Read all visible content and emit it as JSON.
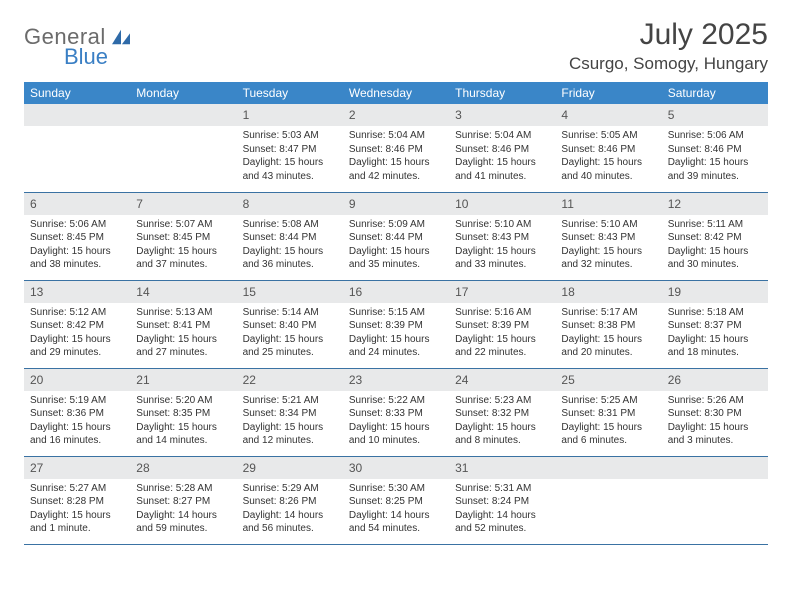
{
  "logo": {
    "text1": "General",
    "text2": "Blue",
    "icon_color": "#2f6aa8"
  },
  "title": "July 2025",
  "location": "Csurgo, Somogy, Hungary",
  "colors": {
    "header_bg": "#3a86c8",
    "header_text": "#ffffff",
    "daynum_bg": "#e8e9ea",
    "row_border": "#3a72a3",
    "body_text": "#333333",
    "logo_gray": "#6b6b6b",
    "logo_blue": "#3a7fc4"
  },
  "weekdays": [
    "Sunday",
    "Monday",
    "Tuesday",
    "Wednesday",
    "Thursday",
    "Friday",
    "Saturday"
  ],
  "weeks": [
    [
      {
        "empty": true
      },
      {
        "empty": true
      },
      {
        "day": "1",
        "sunrise": "Sunrise: 5:03 AM",
        "sunset": "Sunset: 8:47 PM",
        "daylight": "Daylight: 15 hours and 43 minutes."
      },
      {
        "day": "2",
        "sunrise": "Sunrise: 5:04 AM",
        "sunset": "Sunset: 8:46 PM",
        "daylight": "Daylight: 15 hours and 42 minutes."
      },
      {
        "day": "3",
        "sunrise": "Sunrise: 5:04 AM",
        "sunset": "Sunset: 8:46 PM",
        "daylight": "Daylight: 15 hours and 41 minutes."
      },
      {
        "day": "4",
        "sunrise": "Sunrise: 5:05 AM",
        "sunset": "Sunset: 8:46 PM",
        "daylight": "Daylight: 15 hours and 40 minutes."
      },
      {
        "day": "5",
        "sunrise": "Sunrise: 5:06 AM",
        "sunset": "Sunset: 8:46 PM",
        "daylight": "Daylight: 15 hours and 39 minutes."
      }
    ],
    [
      {
        "day": "6",
        "sunrise": "Sunrise: 5:06 AM",
        "sunset": "Sunset: 8:45 PM",
        "daylight": "Daylight: 15 hours and 38 minutes."
      },
      {
        "day": "7",
        "sunrise": "Sunrise: 5:07 AM",
        "sunset": "Sunset: 8:45 PM",
        "daylight": "Daylight: 15 hours and 37 minutes."
      },
      {
        "day": "8",
        "sunrise": "Sunrise: 5:08 AM",
        "sunset": "Sunset: 8:44 PM",
        "daylight": "Daylight: 15 hours and 36 minutes."
      },
      {
        "day": "9",
        "sunrise": "Sunrise: 5:09 AM",
        "sunset": "Sunset: 8:44 PM",
        "daylight": "Daylight: 15 hours and 35 minutes."
      },
      {
        "day": "10",
        "sunrise": "Sunrise: 5:10 AM",
        "sunset": "Sunset: 8:43 PM",
        "daylight": "Daylight: 15 hours and 33 minutes."
      },
      {
        "day": "11",
        "sunrise": "Sunrise: 5:10 AM",
        "sunset": "Sunset: 8:43 PM",
        "daylight": "Daylight: 15 hours and 32 minutes."
      },
      {
        "day": "12",
        "sunrise": "Sunrise: 5:11 AM",
        "sunset": "Sunset: 8:42 PM",
        "daylight": "Daylight: 15 hours and 30 minutes."
      }
    ],
    [
      {
        "day": "13",
        "sunrise": "Sunrise: 5:12 AM",
        "sunset": "Sunset: 8:42 PM",
        "daylight": "Daylight: 15 hours and 29 minutes."
      },
      {
        "day": "14",
        "sunrise": "Sunrise: 5:13 AM",
        "sunset": "Sunset: 8:41 PM",
        "daylight": "Daylight: 15 hours and 27 minutes."
      },
      {
        "day": "15",
        "sunrise": "Sunrise: 5:14 AM",
        "sunset": "Sunset: 8:40 PM",
        "daylight": "Daylight: 15 hours and 25 minutes."
      },
      {
        "day": "16",
        "sunrise": "Sunrise: 5:15 AM",
        "sunset": "Sunset: 8:39 PM",
        "daylight": "Daylight: 15 hours and 24 minutes."
      },
      {
        "day": "17",
        "sunrise": "Sunrise: 5:16 AM",
        "sunset": "Sunset: 8:39 PM",
        "daylight": "Daylight: 15 hours and 22 minutes."
      },
      {
        "day": "18",
        "sunrise": "Sunrise: 5:17 AM",
        "sunset": "Sunset: 8:38 PM",
        "daylight": "Daylight: 15 hours and 20 minutes."
      },
      {
        "day": "19",
        "sunrise": "Sunrise: 5:18 AM",
        "sunset": "Sunset: 8:37 PM",
        "daylight": "Daylight: 15 hours and 18 minutes."
      }
    ],
    [
      {
        "day": "20",
        "sunrise": "Sunrise: 5:19 AM",
        "sunset": "Sunset: 8:36 PM",
        "daylight": "Daylight: 15 hours and 16 minutes."
      },
      {
        "day": "21",
        "sunrise": "Sunrise: 5:20 AM",
        "sunset": "Sunset: 8:35 PM",
        "daylight": "Daylight: 15 hours and 14 minutes."
      },
      {
        "day": "22",
        "sunrise": "Sunrise: 5:21 AM",
        "sunset": "Sunset: 8:34 PM",
        "daylight": "Daylight: 15 hours and 12 minutes."
      },
      {
        "day": "23",
        "sunrise": "Sunrise: 5:22 AM",
        "sunset": "Sunset: 8:33 PM",
        "daylight": "Daylight: 15 hours and 10 minutes."
      },
      {
        "day": "24",
        "sunrise": "Sunrise: 5:23 AM",
        "sunset": "Sunset: 8:32 PM",
        "daylight": "Daylight: 15 hours and 8 minutes."
      },
      {
        "day": "25",
        "sunrise": "Sunrise: 5:25 AM",
        "sunset": "Sunset: 8:31 PM",
        "daylight": "Daylight: 15 hours and 6 minutes."
      },
      {
        "day": "26",
        "sunrise": "Sunrise: 5:26 AM",
        "sunset": "Sunset: 8:30 PM",
        "daylight": "Daylight: 15 hours and 3 minutes."
      }
    ],
    [
      {
        "day": "27",
        "sunrise": "Sunrise: 5:27 AM",
        "sunset": "Sunset: 8:28 PM",
        "daylight": "Daylight: 15 hours and 1 minute."
      },
      {
        "day": "28",
        "sunrise": "Sunrise: 5:28 AM",
        "sunset": "Sunset: 8:27 PM",
        "daylight": "Daylight: 14 hours and 59 minutes."
      },
      {
        "day": "29",
        "sunrise": "Sunrise: 5:29 AM",
        "sunset": "Sunset: 8:26 PM",
        "daylight": "Daylight: 14 hours and 56 minutes."
      },
      {
        "day": "30",
        "sunrise": "Sunrise: 5:30 AM",
        "sunset": "Sunset: 8:25 PM",
        "daylight": "Daylight: 14 hours and 54 minutes."
      },
      {
        "day": "31",
        "sunrise": "Sunrise: 5:31 AM",
        "sunset": "Sunset: 8:24 PM",
        "daylight": "Daylight: 14 hours and 52 minutes."
      },
      {
        "empty": true
      },
      {
        "empty": true
      }
    ]
  ]
}
